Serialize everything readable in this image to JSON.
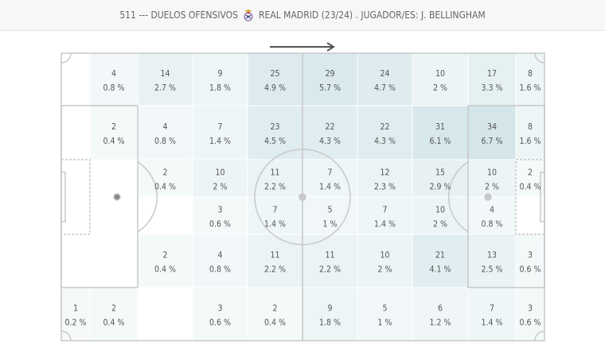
{
  "header": {
    "title_prefix": "511 --- DUELOS OFENSIVOS",
    "title_suffix": "REAL MADRID (23/24) . JUGADOR/ES: J. BELLINGHAM",
    "crest_icon": "real-madrid-crest-icon"
  },
  "attack_direction_icon": "arrow-right-icon",
  "colors": {
    "heat_base": "#cfe3e8",
    "pitch_line": "#c8c8c8",
    "text": "#555555"
  },
  "chart_data": {
    "type": "heatmap",
    "title": "511 --- DUELOS OFENSIVOS  REAL MADRID (23/24) . JUGADOR/ES: J. BELLINGHAM",
    "cells": [
      {
        "row": 0,
        "col": 1,
        "count": "4",
        "pct": "0.8 %"
      },
      {
        "row": 0,
        "col": 2,
        "count": "14",
        "pct": "2.7 %"
      },
      {
        "row": 0,
        "col": 3,
        "count": "9",
        "pct": "1.8 %"
      },
      {
        "row": 0,
        "col": 4,
        "count": "25",
        "pct": "4.9 %"
      },
      {
        "row": 0,
        "col": 5,
        "count": "29",
        "pct": "5.7 %"
      },
      {
        "row": 0,
        "col": 6,
        "count": "24",
        "pct": "4.7 %"
      },
      {
        "row": 0,
        "col": 7,
        "count": "10",
        "pct": "2 %"
      },
      {
        "row": 0,
        "col": 8,
        "count": "17",
        "pct": "3.3 %"
      },
      {
        "row": 0,
        "col": 9,
        "count": "8",
        "pct": "1.6 %"
      },
      {
        "row": 1,
        "col": 1,
        "count": "2",
        "pct": "0.4 %"
      },
      {
        "row": 1,
        "col": 2,
        "count": "4",
        "pct": "0.8 %"
      },
      {
        "row": 1,
        "col": 3,
        "count": "7",
        "pct": "1.4 %"
      },
      {
        "row": 1,
        "col": 4,
        "count": "23",
        "pct": "4.5 %"
      },
      {
        "row": 1,
        "col": 5,
        "count": "22",
        "pct": "4.3 %"
      },
      {
        "row": 1,
        "col": 6,
        "count": "22",
        "pct": "4.3 %"
      },
      {
        "row": 1,
        "col": 7,
        "count": "31",
        "pct": "6.1 %"
      },
      {
        "row": 1,
        "col": 8,
        "count": "34",
        "pct": "6.7 %"
      },
      {
        "row": 1,
        "col": 9,
        "count": "8",
        "pct": "1.6 %"
      },
      {
        "row": 2,
        "col": 2,
        "count": "2",
        "pct": "0.4 %"
      },
      {
        "row": 2,
        "col": 3,
        "count": "10",
        "pct": "2 %"
      },
      {
        "row": 2,
        "col": 4,
        "count": "11",
        "pct": "2.2 %"
      },
      {
        "row": 2,
        "col": 5,
        "count": "7",
        "pct": "1.4 %"
      },
      {
        "row": 2,
        "col": 6,
        "count": "12",
        "pct": "2.3 %"
      },
      {
        "row": 2,
        "col": 7,
        "count": "15",
        "pct": "2.9 %"
      },
      {
        "row": 2,
        "col": 8,
        "count": "10",
        "pct": "2 %"
      },
      {
        "row": 2,
        "col": 9,
        "count": "2",
        "pct": "0.4 %"
      },
      {
        "row": 3,
        "col": 3,
        "count": "3",
        "pct": "0.6 %"
      },
      {
        "row": 3,
        "col": 4,
        "count": "7",
        "pct": "1.4 %"
      },
      {
        "row": 3,
        "col": 5,
        "count": "5",
        "pct": "1 %"
      },
      {
        "row": 3,
        "col": 6,
        "count": "7",
        "pct": "1.4 %"
      },
      {
        "row": 3,
        "col": 7,
        "count": "10",
        "pct": "2 %"
      },
      {
        "row": 3,
        "col": 8,
        "count": "4",
        "pct": "0.8 %"
      },
      {
        "row": 4,
        "col": 2,
        "count": "2",
        "pct": "0.4 %"
      },
      {
        "row": 4,
        "col": 3,
        "count": "4",
        "pct": "0.8 %"
      },
      {
        "row": 4,
        "col": 4,
        "count": "11",
        "pct": "2.2 %"
      },
      {
        "row": 4,
        "col": 5,
        "count": "11",
        "pct": "2.2 %"
      },
      {
        "row": 4,
        "col": 6,
        "count": "10",
        "pct": "2 %"
      },
      {
        "row": 4,
        "col": 7,
        "count": "21",
        "pct": "4.1 %"
      },
      {
        "row": 4,
        "col": 8,
        "count": "13",
        "pct": "2.5 %"
      },
      {
        "row": 4,
        "col": 9,
        "count": "3",
        "pct": "0.6 %"
      },
      {
        "row": 5,
        "col": 0,
        "count": "1",
        "pct": "0.2 %"
      },
      {
        "row": 5,
        "col": 1,
        "count": "2",
        "pct": "0.4 %"
      },
      {
        "row": 5,
        "col": 3,
        "count": "3",
        "pct": "0.6 %"
      },
      {
        "row": 5,
        "col": 4,
        "count": "2",
        "pct": "0.4 %"
      },
      {
        "row": 5,
        "col": 5,
        "count": "9",
        "pct": "1.8 %"
      },
      {
        "row": 5,
        "col": 6,
        "count": "5",
        "pct": "1 %"
      },
      {
        "row": 5,
        "col": 7,
        "count": "6",
        "pct": "1.2 %"
      },
      {
        "row": 5,
        "col": 8,
        "count": "7",
        "pct": "1.4 %"
      },
      {
        "row": 5,
        "col": 9,
        "count": "3",
        "pct": "0.6 %"
      }
    ]
  }
}
